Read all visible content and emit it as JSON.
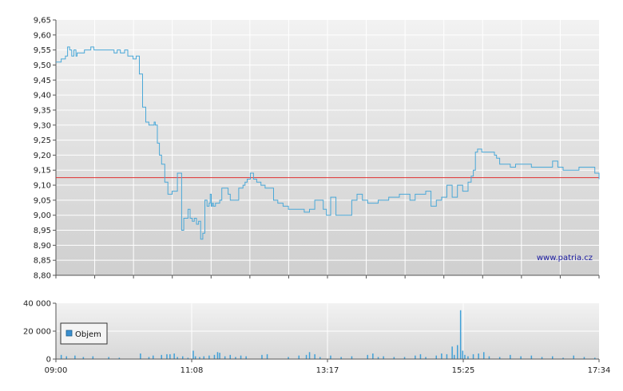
{
  "watermark": "www.patria.cz",
  "legend": {
    "label": "Objem",
    "color": "#3a8fd0"
  },
  "colors": {
    "price_line": "#4aa8d8",
    "reference_line": "#e03030",
    "volume_bar": "#3fa0d8"
  },
  "chart_data": [
    {
      "type": "line",
      "ylim": [
        8.8,
        9.65
      ],
      "y_ticks": [
        "9,65",
        "9,60",
        "9,55",
        "9,50",
        "9,45",
        "9,40",
        "9,35",
        "9,30",
        "9,25",
        "9,20",
        "9,15",
        "9,10",
        "9,05",
        "9,00",
        "8,95",
        "8,90",
        "8,85",
        "8,80"
      ],
      "reference_value": 9.125,
      "grid": true,
      "x_range_minutes": [
        540,
        1054
      ],
      "series": [
        {
          "x": [
            540,
            545,
            549,
            551,
            553,
            555,
            557,
            559,
            560,
            563,
            567,
            570,
            573,
            576,
            580,
            582,
            585,
            590,
            595,
            598,
            601,
            605,
            608,
            610,
            613,
            616,
            619,
            622,
            625,
            628,
            631,
            633,
            634,
            635,
            636,
            638,
            640,
            643,
            646,
            650,
            655,
            657,
            659,
            661,
            663,
            665,
            667,
            669,
            671,
            673,
            675,
            677,
            679,
            681,
            683,
            685,
            686,
            687,
            688,
            689,
            691,
            693,
            695,
            697,
            699,
            701,
            703,
            705,
            707,
            709,
            711,
            713,
            715,
            717,
            719,
            721,
            724,
            727,
            730,
            732,
            734,
            736,
            738,
            742,
            746,
            750,
            755,
            760,
            765,
            770,
            775,
            780,
            785,
            790,
            793,
            796,
            800,
            805,
            810,
            815,
            820,
            825,
            830,
            835,
            840,
            845,
            850,
            855,
            860,
            865,
            870,
            875,
            880,
            885,
            890,
            895,
            900,
            905,
            910,
            915,
            920,
            925,
            930,
            933,
            935,
            937,
            939,
            941,
            943,
            945,
            947,
            949,
            951,
            953,
            955,
            957,
            960,
            965,
            970,
            975,
            980,
            985,
            990,
            995,
            1000,
            1005,
            1010,
            1015,
            1020,
            1025,
            1030,
            1035,
            1040,
            1045,
            1050,
            1054
          ],
          "y": [
            9.51,
            9.52,
            9.53,
            9.56,
            9.55,
            9.53,
            9.55,
            9.53,
            9.54,
            9.54,
            9.55,
            9.55,
            9.56,
            9.55,
            9.55,
            9.55,
            9.55,
            9.55,
            9.54,
            9.55,
            9.54,
            9.55,
            9.53,
            9.53,
            9.52,
            9.53,
            9.47,
            9.36,
            9.31,
            9.3,
            9.3,
            9.31,
            9.3,
            9.3,
            9.24,
            9.2,
            9.17,
            9.11,
            9.07,
            9.08,
            9.14,
            9.14,
            8.95,
            8.99,
            8.99,
            9.02,
            8.99,
            8.98,
            8.99,
            8.97,
            8.98,
            8.92,
            8.94,
            9.05,
            9.03,
            9.04,
            9.07,
            9.03,
            9.04,
            9.03,
            9.04,
            9.04,
            9.05,
            9.09,
            9.09,
            9.09,
            9.07,
            9.05,
            9.05,
            9.05,
            9.05,
            9.09,
            9.09,
            9.1,
            9.11,
            9.12,
            9.14,
            9.12,
            9.11,
            9.11,
            9.1,
            9.1,
            9.09,
            9.09,
            9.05,
            9.04,
            9.03,
            9.02,
            9.02,
            9.02,
            9.01,
            9.02,
            9.05,
            9.05,
            9.02,
            9.0,
            9.06,
            9.0,
            9.0,
            9.0,
            9.05,
            9.07,
            9.05,
            9.04,
            9.04,
            9.05,
            9.05,
            9.06,
            9.06,
            9.07,
            9.07,
            9.05,
            9.07,
            9.07,
            9.08,
            9.03,
            9.05,
            9.06,
            9.1,
            9.06,
            9.1,
            9.08,
            9.11,
            9.13,
            9.15,
            9.21,
            9.22,
            9.22,
            9.21,
            9.21,
            9.21,
            9.21,
            9.21,
            9.21,
            9.2,
            9.19,
            9.17,
            9.17,
            9.16,
            9.17,
            9.17,
            9.17,
            9.16,
            9.16,
            9.16,
            9.16,
            9.18,
            9.16,
            9.15,
            9.15,
            9.15,
            9.16,
            9.16,
            9.16,
            9.14,
            9.12
          ]
        }
      ]
    },
    {
      "type": "bar",
      "ylim": [
        0,
        40000
      ],
      "y_ticks": [
        "40 000",
        "20 000",
        "0"
      ],
      "x_ticks": [
        "09:00",
        "11:08",
        "13:17",
        "15:25",
        "17:34"
      ],
      "x_range_minutes": [
        540,
        1054
      ],
      "series": [
        {
          "name": "Objem",
          "x": [
            545,
            550,
            558,
            566,
            575,
            590,
            600,
            620,
            628,
            632,
            640,
            645,
            648,
            652,
            655,
            660,
            665,
            670,
            672,
            676,
            680,
            685,
            690,
            693,
            695,
            700,
            705,
            710,
            715,
            720,
            735,
            740,
            760,
            770,
            777,
            780,
            785,
            790,
            800,
            810,
            820,
            835,
            840,
            845,
            850,
            860,
            870,
            880,
            885,
            890,
            900,
            905,
            910,
            915,
            917,
            920,
            923,
            925,
            927,
            930,
            935,
            940,
            945,
            950,
            960,
            970,
            980,
            990,
            1000,
            1010,
            1020,
            1030,
            1040,
            1050
          ],
          "values": [
            3000,
            2000,
            2500,
            1500,
            2000,
            1500,
            1000,
            4000,
            1500,
            2500,
            3000,
            3500,
            3500,
            4000,
            1500,
            2000,
            1000,
            6000,
            2000,
            1500,
            2000,
            2500,
            3000,
            5000,
            4500,
            2000,
            3000,
            1500,
            2500,
            2000,
            3000,
            3500,
            1500,
            2500,
            3000,
            5000,
            3500,
            1500,
            2500,
            1500,
            2000,
            3000,
            4000,
            1500,
            2000,
            1500,
            1500,
            2500,
            3500,
            1500,
            2500,
            4000,
            3500,
            9000,
            3000,
            10000,
            35000,
            6000,
            3000,
            2000,
            3500,
            4000,
            5000,
            2000,
            1500,
            3000,
            2000,
            2500,
            1500,
            2000,
            1000,
            2500,
            1500,
            1000
          ]
        }
      ]
    }
  ]
}
